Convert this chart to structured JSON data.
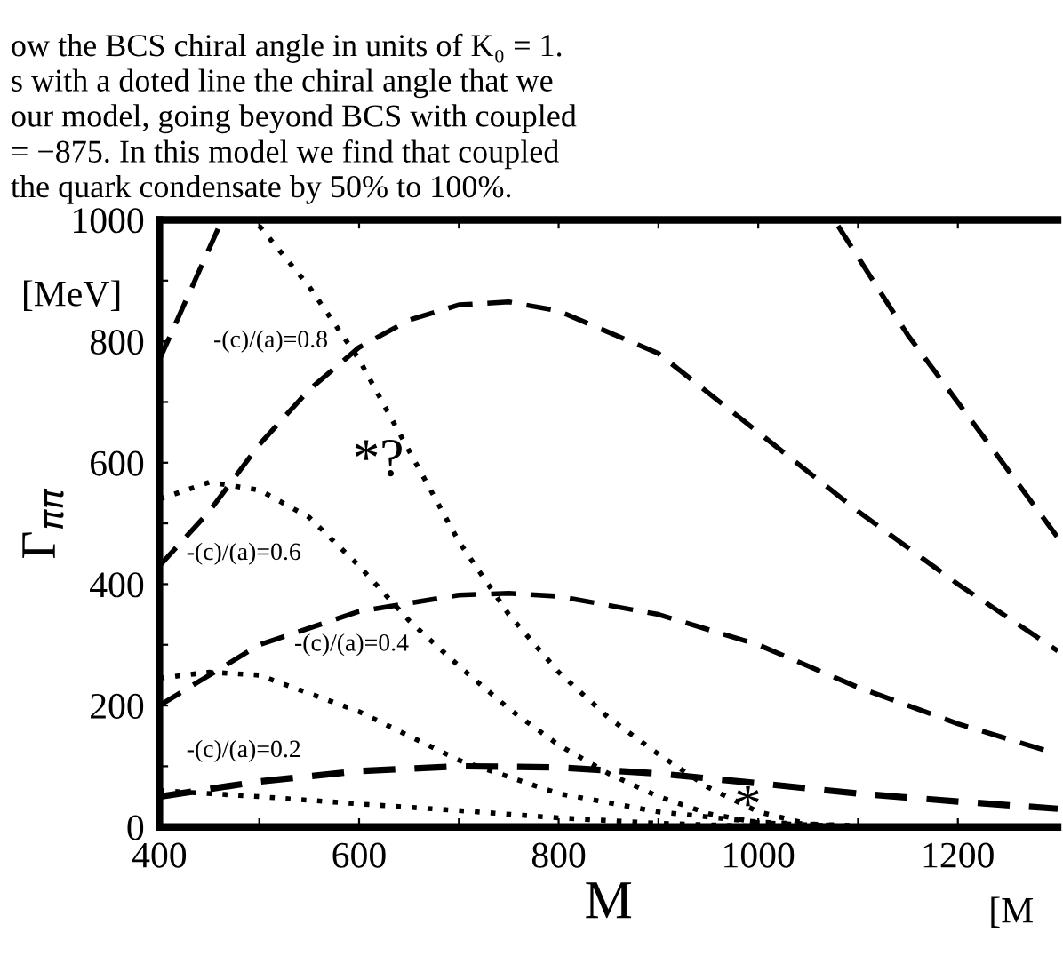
{
  "chart_data": {
    "type": "line",
    "xlabel": "M",
    "ylabel": "Γ$_{ππ}$",
    "xlim": [
      400,
      1300
    ],
    "ylim": [
      0,
      1000
    ],
    "xticks": [
      400,
      {
        "value": 500,
        "label": null
      },
      600,
      {
        "value": 700,
        "label": null
      },
      800,
      {
        "value": 900,
        "label": null
      },
      1000,
      {
        "value": 1100,
        "label": null
      },
      1200
    ],
    "yticks": [
      0,
      {
        "value": 100,
        "label": null
      },
      200,
      {
        "value": 300,
        "label": null
      },
      400,
      {
        "value": 500,
        "label": null
      },
      600,
      {
        "value": 700,
        "label": null
      },
      800,
      {
        "value": 900,
        "label": null
      },
      1000
    ],
    "grid": false,
    "legend": false,
    "marker": "none",
    "series": [
      {
        "color": "#000000",
        "line_style": "dashed",
        "x": [
          400,
          500,
          600,
          700,
          800,
          900,
          1000,
          1100,
          1200,
          1300
        ],
        "values": [
          50,
          75,
          92,
          100,
          98,
          88,
          72,
          55,
          42,
          30
        ]
      },
      {
        "color": "#000000",
        "line_style": "dashed",
        "x": [
          400,
          500,
          600,
          700,
          750,
          800,
          900,
          1000,
          1100,
          1200,
          1300
        ],
        "values": [
          200,
          300,
          355,
          382,
          385,
          380,
          350,
          300,
          230,
          170,
          120
        ]
      },
      {
        "color": "#000000",
        "line_style": "dashed",
        "x": [
          400,
          450,
          500,
          550,
          600,
          650,
          700,
          750,
          800,
          900,
          1000,
          1100,
          1200,
          1300
        ],
        "values": [
          430,
          520,
          630,
          720,
          790,
          835,
          860,
          865,
          850,
          780,
          650,
          520,
          400,
          290
        ]
      },
      {
        "color": "#000000",
        "line_style": "dashed",
        "x": [
          400,
          430,
          460,
          770,
          1080,
          1150,
          1230,
          1300
        ],
        "values": [
          770,
          880,
          990,
          null,
          990,
          810,
          633,
          477
        ]
      },
      {
        "color": "#000000",
        "line_style": "dotted",
        "x": [
          400,
          500,
          600,
          700,
          800,
          900,
          1000,
          1100
        ],
        "values": [
          60,
          50,
          38,
          27,
          15,
          6,
          1,
          0
        ]
      },
      {
        "color": "#000000",
        "line_style": "dotted",
        "x": [
          400,
          450,
          500,
          600,
          700,
          800,
          900,
          1000,
          1100
        ],
        "values": [
          245,
          255,
          250,
          190,
          110,
          55,
          25,
          8,
          2
        ]
      },
      {
        "color": "#000000",
        "line_style": "dotted",
        "x": [
          400,
          450,
          500,
          550,
          600,
          650,
          700,
          750,
          800,
          850,
          900,
          950,
          1000,
          1100
        ],
        "values": [
          540,
          568,
          555,
          510,
          430,
          340,
          265,
          195,
          135,
          88,
          50,
          22,
          7,
          0
        ]
      },
      {
        "color": "#000000",
        "line_style": "dotted",
        "x": [
          500,
          550,
          600,
          650,
          700,
          750,
          800,
          850,
          900,
          950,
          1000,
          1050,
          1100
        ],
        "values": [
          990,
          890,
          770,
          620,
          470,
          350,
          255,
          180,
          120,
          65,
          25,
          5,
          0
        ]
      }
    ],
    "annotations": [
      "-(c)/(a)=0.2",
      "-(c)/(a)=0.4",
      "-(c)/(a)=0.6",
      "-(c)/(a)=0.8",
      "*?",
      "*",
      "[MeV]",
      "[M",
      "ow the BCS chiral angle in units of K₀ = 1.",
      "s with a doted line the chiral angle that we",
      "our model, going beyond BCS with coupled",
      "= −875. In this model we find that coupled",
      "the quark condensate by 50% to 100%."
    ]
  }
}
